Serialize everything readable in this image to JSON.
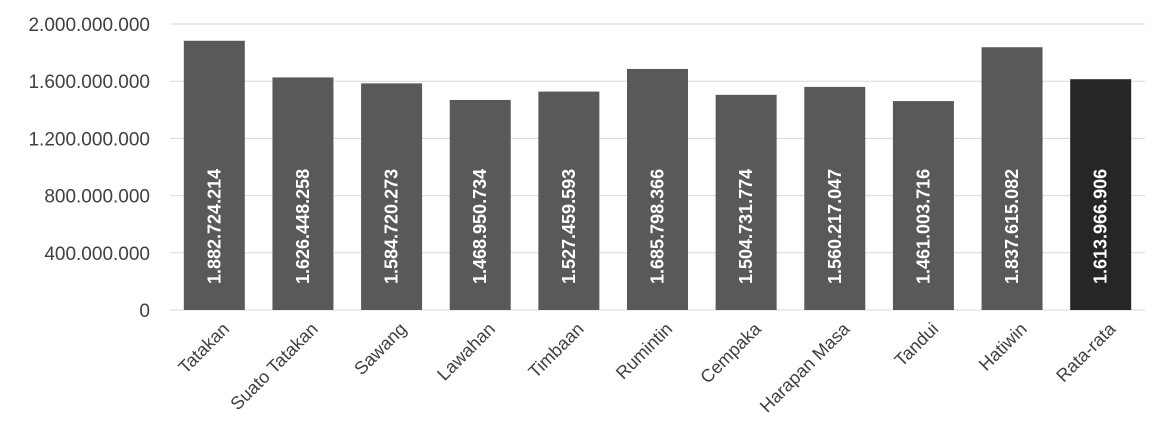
{
  "chart_data": {
    "type": "bar",
    "categories": [
      "Tatakan",
      "Suato Tatakan",
      "Sawang",
      "Lawahan",
      "Timbaan",
      "Rumintin",
      "Cempaka",
      "Harapan Masa",
      "Tandui",
      "Hatiwin",
      "Rata-rata"
    ],
    "values": [
      1882724214,
      1626448258,
      1584720273,
      1468950734,
      1527459593,
      1685798366,
      1504731774,
      1560217047,
      1461003716,
      1837615082,
      1613966906
    ],
    "data_labels": [
      "1.882.724.214",
      "1.626.448.258",
      "1.584.720.273",
      "1.468.950.734",
      "1.527.459.593",
      "1.685.798.366",
      "1.504.731.774",
      "1.560.217.047",
      "1.461.003.716",
      "1.837.615.082",
      "1.613.966.906"
    ],
    "yticks": [
      0,
      400000000,
      800000000,
      1200000000,
      1600000000,
      2000000000
    ],
    "ytick_labels": [
      "0",
      "400.000.000",
      "800.000.000",
      "1.200.000.000",
      "1.600.000.000",
      "2.000.000.000"
    ],
    "ylim": [
      0,
      2000000000
    ],
    "title": "",
    "xlabel": "",
    "ylabel": "",
    "grid": true,
    "colors": {
      "bar": "#595959",
      "highlight_bar": "#262626",
      "label": "#ffffff",
      "gridline": "#d9d9d9",
      "tick_text": "#404040"
    },
    "highlight_category": "Rata-rata"
  }
}
